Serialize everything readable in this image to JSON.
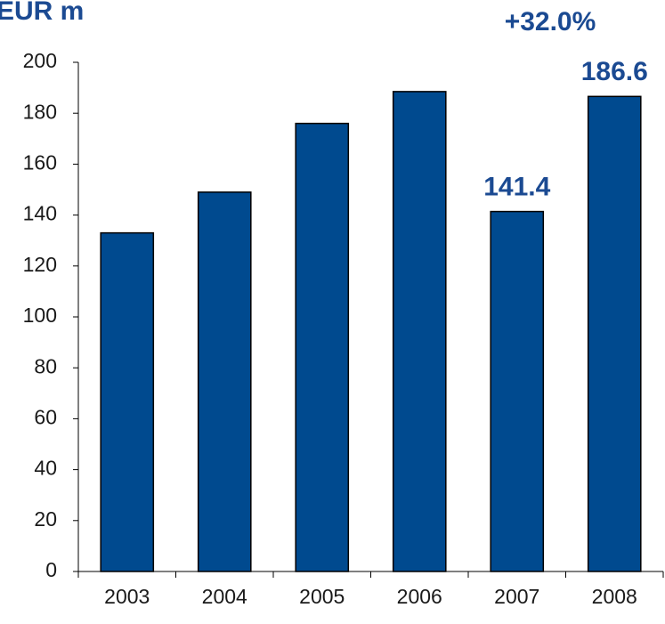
{
  "chart_data": {
    "type": "bar",
    "title": "EUR m",
    "annotation": "+32.0%",
    "categories": [
      "2003",
      "2004",
      "2005",
      "2006",
      "2007",
      "2008"
    ],
    "values": [
      133,
      149,
      176,
      188.5,
      141.4,
      186.6
    ],
    "value_labels": [
      null,
      null,
      null,
      null,
      "141.4",
      "186.6"
    ],
    "color": "#004a8f",
    "ylim": [
      0,
      200
    ],
    "yticks": [
      0,
      20,
      40,
      60,
      80,
      100,
      120,
      140,
      160,
      180,
      200
    ],
    "grid": false
  }
}
